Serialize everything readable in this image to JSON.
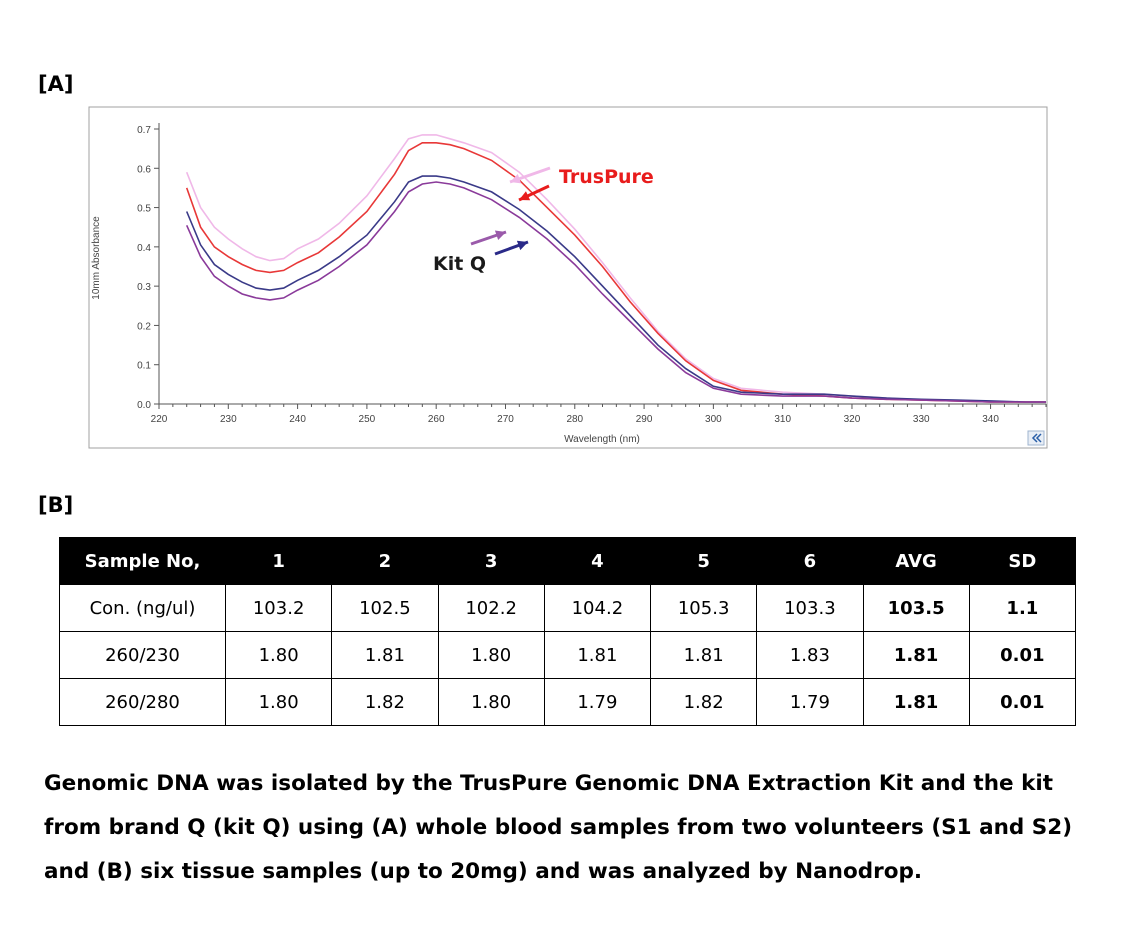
{
  "panel_a_label": "[A]",
  "panel_b_label": "[B]",
  "chart_data": {
    "type": "line",
    "xlabel": "Wavelength (nm)",
    "ylabel": "10mm Absorbance",
    "xlim": [
      220,
      348
    ],
    "ylim": [
      0,
      0.72
    ],
    "xticks": [
      220,
      230,
      240,
      250,
      260,
      270,
      280,
      290,
      300,
      310,
      320,
      330,
      340
    ],
    "yticks": [
      "0.0",
      "0.1",
      "0.2",
      "0.3",
      "0.4",
      "0.5",
      "0.6",
      "0.7"
    ],
    "nav_icon": "double-chevron-left-icon",
    "series": [
      {
        "color": "#f0b8e8",
        "x": [
          224,
          226,
          228,
          230,
          232,
          234,
          236,
          238,
          240,
          243,
          246,
          250,
          254,
          256,
          258,
          260,
          262,
          264,
          268,
          272,
          276,
          280,
          284,
          288,
          292,
          296,
          300,
          304,
          310,
          316,
          320,
          325,
          330,
          335,
          340,
          345,
          348
        ],
        "y": [
          0.59,
          0.5,
          0.45,
          0.42,
          0.395,
          0.375,
          0.365,
          0.37,
          0.395,
          0.42,
          0.46,
          0.53,
          0.625,
          0.675,
          0.685,
          0.685,
          0.675,
          0.665,
          0.64,
          0.59,
          0.52,
          0.445,
          0.36,
          0.27,
          0.185,
          0.115,
          0.065,
          0.04,
          0.03,
          0.025,
          0.02,
          0.015,
          0.01,
          0.008,
          0.005,
          0.005,
          0.005
        ]
      },
      {
        "color": "#e83838",
        "x": [
          224,
          226,
          228,
          230,
          232,
          234,
          236,
          238,
          240,
          243,
          246,
          250,
          254,
          256,
          258,
          260,
          262,
          264,
          268,
          272,
          276,
          280,
          284,
          288,
          292,
          296,
          300,
          304,
          310,
          316,
          320,
          325,
          330,
          335,
          340,
          345,
          348
        ],
        "y": [
          0.55,
          0.45,
          0.4,
          0.375,
          0.355,
          0.34,
          0.335,
          0.34,
          0.36,
          0.385,
          0.425,
          0.49,
          0.585,
          0.645,
          0.665,
          0.665,
          0.66,
          0.65,
          0.62,
          0.57,
          0.5,
          0.43,
          0.35,
          0.26,
          0.18,
          0.11,
          0.06,
          0.035,
          0.025,
          0.02,
          0.015,
          0.012,
          0.01,
          0.008,
          0.005,
          0.005,
          0.005
        ]
      },
      {
        "color": "#3a3a88",
        "x": [
          224,
          226,
          228,
          230,
          232,
          234,
          236,
          238,
          240,
          243,
          246,
          250,
          254,
          256,
          258,
          260,
          262,
          264,
          268,
          272,
          276,
          280,
          284,
          288,
          292,
          296,
          300,
          304,
          310,
          316,
          320,
          325,
          330,
          335,
          340,
          345,
          348
        ],
        "y": [
          0.49,
          0.405,
          0.355,
          0.33,
          0.31,
          0.295,
          0.29,
          0.295,
          0.315,
          0.34,
          0.375,
          0.43,
          0.515,
          0.565,
          0.58,
          0.58,
          0.575,
          0.565,
          0.54,
          0.495,
          0.44,
          0.375,
          0.3,
          0.225,
          0.15,
          0.09,
          0.045,
          0.03,
          0.025,
          0.025,
          0.02,
          0.015,
          0.012,
          0.01,
          0.008,
          0.005,
          0.005
        ]
      },
      {
        "color": "#8a3a9a",
        "x": [
          224,
          226,
          228,
          230,
          232,
          234,
          236,
          238,
          240,
          243,
          246,
          250,
          254,
          256,
          258,
          260,
          262,
          264,
          268,
          272,
          276,
          280,
          284,
          288,
          292,
          296,
          300,
          304,
          310,
          316,
          320,
          325,
          330,
          335,
          340,
          345,
          348
        ],
        "y": [
          0.455,
          0.375,
          0.325,
          0.3,
          0.28,
          0.27,
          0.265,
          0.27,
          0.29,
          0.315,
          0.35,
          0.405,
          0.49,
          0.54,
          0.56,
          0.565,
          0.56,
          0.55,
          0.52,
          0.475,
          0.42,
          0.355,
          0.28,
          0.21,
          0.14,
          0.08,
          0.04,
          0.025,
          0.02,
          0.02,
          0.015,
          0.012,
          0.01,
          0.008,
          0.005,
          0.005,
          0.005
        ]
      }
    ],
    "annotations": [
      {
        "text": "TrusPure",
        "color": "#e81c1c"
      },
      {
        "text": "Kit Q",
        "color": "#1a1a1a"
      }
    ]
  },
  "table": {
    "headers": [
      "Sample No,",
      "1",
      "2",
      "3",
      "4",
      "5",
      "6",
      "AVG",
      "SD"
    ],
    "rows": [
      [
        "Con. (ng/ul)",
        "103.2",
        "102.5",
        "102.2",
        "104.2",
        "105.3",
        "103.3",
        "103.5",
        "1.1"
      ],
      [
        "260/230",
        "1.80",
        "1.81",
        "1.80",
        "1.81",
        "1.81",
        "1.83",
        "1.81",
        "0.01"
      ],
      [
        "260/280",
        "1.80",
        "1.82",
        "1.80",
        "1.79",
        "1.82",
        "1.79",
        "1.81",
        "0.01"
      ]
    ]
  },
  "caption_lines": [
    "Genomic DNA was isolated by the TrusPure Genomic DNA Extraction Kit and the kit",
    "from brand Q (kit Q) using (A) whole blood samples from two volunteers (S1 and S2)",
    "and (B) six tissue samples (up to 20mg) and was analyzed by Nanodrop."
  ]
}
